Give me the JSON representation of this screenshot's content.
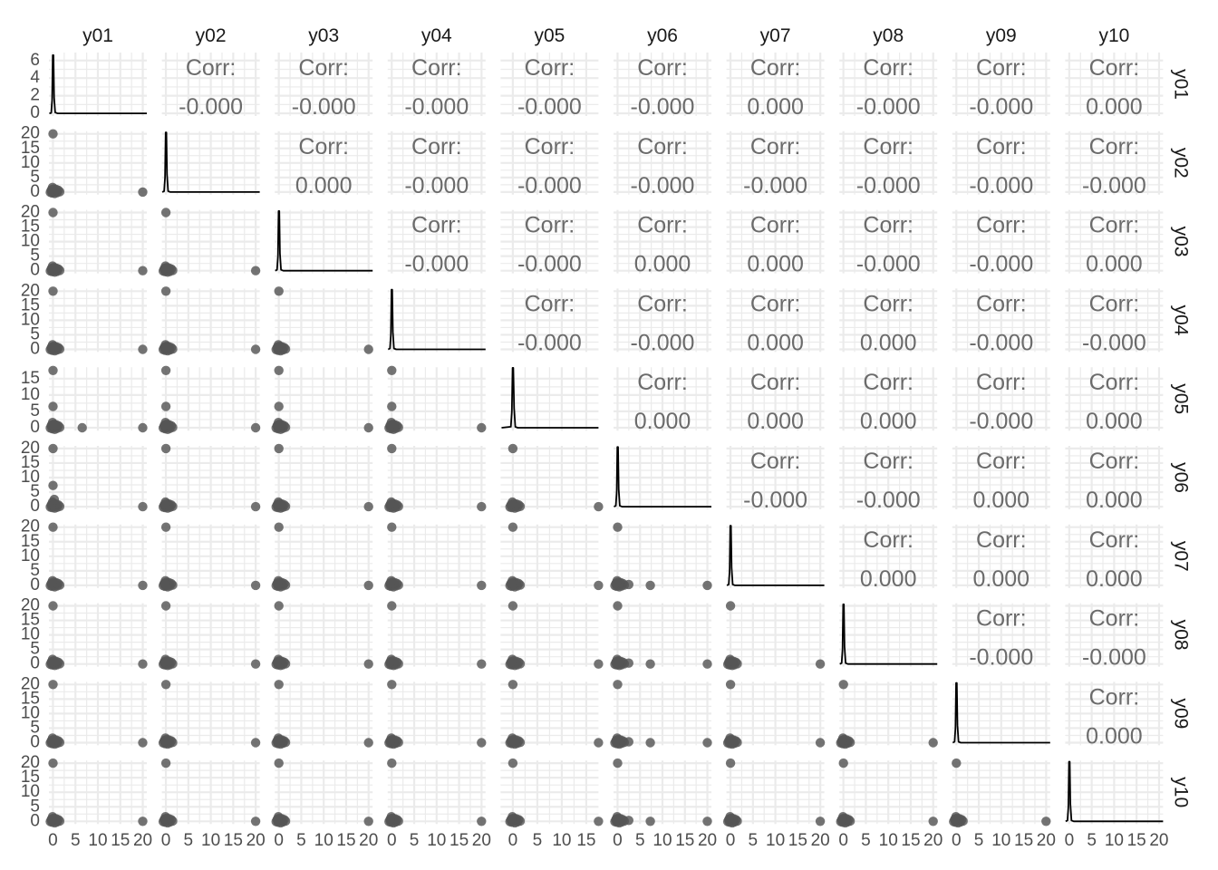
{
  "chart_data": {
    "type": "scatter",
    "subtype": "pairs-matrix",
    "variables": [
      "y01",
      "y02",
      "y03",
      "y04",
      "y05",
      "y06",
      "y07",
      "y08",
      "y09",
      "y10"
    ],
    "corr_label": "Corr:",
    "correlations": [
      [
        null,
        "-0.000",
        "-0.000",
        "-0.000",
        "-0.000",
        "-0.000",
        "0.000",
        "-0.000",
        "-0.000",
        "0.000"
      ],
      [
        null,
        null,
        "0.000",
        "-0.000",
        "-0.000",
        "-0.000",
        "-0.000",
        "-0.000",
        "-0.000",
        "-0.000"
      ],
      [
        null,
        null,
        null,
        "-0.000",
        "-0.000",
        "0.000",
        "0.000",
        "-0.000",
        "-0.000",
        "0.000"
      ],
      [
        null,
        null,
        null,
        null,
        "-0.000",
        "-0.000",
        "0.000",
        "0.000",
        "-0.000",
        "-0.000"
      ],
      [
        null,
        null,
        null,
        null,
        null,
        "0.000",
        "0.000",
        "0.000",
        "-0.000",
        "0.000"
      ],
      [
        null,
        null,
        null,
        null,
        null,
        null,
        "-0.000",
        "-0.000",
        "0.000",
        "0.000"
      ],
      [
        null,
        null,
        null,
        null,
        null,
        null,
        null,
        "0.000",
        "0.000",
        "0.000"
      ],
      [
        null,
        null,
        null,
        null,
        null,
        null,
        null,
        null,
        "-0.000",
        "-0.000"
      ],
      [
        null,
        null,
        null,
        null,
        null,
        null,
        null,
        null,
        null,
        "0.000"
      ],
      [
        null,
        null,
        null,
        null,
        null,
        null,
        null,
        null,
        null,
        null
      ]
    ],
    "x_ticks": [
      [
        "0",
        "5",
        "10",
        "15",
        "20"
      ],
      [
        "0",
        "5",
        "10",
        "15",
        "20"
      ],
      [
        "0",
        "5",
        "10",
        "15",
        "20"
      ],
      [
        "0",
        "5",
        "10",
        "15",
        "20"
      ],
      [
        "0",
        "5",
        "10",
        "15"
      ],
      [
        "0",
        "5",
        "10",
        "15",
        "20"
      ],
      [
        "0",
        "5",
        "10",
        "15",
        "20"
      ],
      [
        "0",
        "5",
        "10",
        "15",
        "20"
      ],
      [
        "0",
        "5",
        "10",
        "15",
        "20"
      ],
      [
        "0",
        "5",
        "10",
        "15",
        "20"
      ]
    ],
    "x_ranges": [
      [
        -0.9,
        20.9
      ],
      [
        -0.9,
        20.9
      ],
      [
        -0.9,
        20.9
      ],
      [
        -0.9,
        20.9
      ],
      [
        -2.5,
        17.5
      ],
      [
        -0.9,
        20.9
      ],
      [
        -0.9,
        20.9
      ],
      [
        -0.9,
        20.9
      ],
      [
        -0.9,
        20.9
      ],
      [
        -0.9,
        20.9
      ]
    ],
    "y_ticks": [
      [
        "0",
        "2",
        "4",
        "6"
      ],
      [
        "0",
        "5",
        "10",
        "15",
        "20"
      ],
      [
        "0",
        "5",
        "10",
        "15",
        "20"
      ],
      [
        "0",
        "5",
        "10",
        "15",
        "20"
      ],
      [
        "0",
        "5",
        "10",
        "15"
      ],
      [
        "0",
        "5",
        "10",
        "15",
        "20"
      ],
      [
        "0",
        "5",
        "10",
        "15",
        "20"
      ],
      [
        "0",
        "5",
        "10",
        "15",
        "20"
      ],
      [
        "0",
        "5",
        "10",
        "15",
        "20"
      ],
      [
        "0",
        "5",
        "10",
        "15",
        "20"
      ]
    ],
    "y_ranges": [
      [
        -0.3,
        6.9
      ],
      [
        -0.9,
        20.9
      ],
      [
        -0.9,
        20.9
      ],
      [
        -0.9,
        20.9
      ],
      [
        -0.9,
        18.5
      ],
      [
        -0.9,
        20.9
      ],
      [
        -0.9,
        20.9
      ],
      [
        -0.9,
        20.9
      ],
      [
        -0.9,
        20.9
      ],
      [
        -0.9,
        20.9
      ]
    ],
    "outlier_positions": [
      20,
      20,
      20,
      20,
      17.5,
      20,
      20,
      20,
      20,
      20
    ],
    "cluster_points": [
      [
        0,
        0
      ],
      [
        0.3,
        0.4
      ],
      [
        -0.2,
        -0.3
      ],
      [
        0.6,
        0.2
      ],
      [
        -0.4,
        0.5
      ],
      [
        0.9,
        -0.2
      ],
      [
        0.2,
        1.1
      ],
      [
        -0.6,
        -0.1
      ],
      [
        1.2,
        0.6
      ],
      [
        0.4,
        -0.5
      ],
      [
        -0.1,
        1.6
      ],
      [
        1.5,
        0.1
      ],
      [
        0.7,
        0.9
      ],
      [
        -0.3,
        0.8
      ]
    ],
    "extra_points": {
      "4": [
        [
          0,
          6.5
        ]
      ],
      "5": [
        [
          7.3,
          0
        ],
        [
          2.5,
          0.3
        ]
      ]
    },
    "density_curves": [
      [
        [
          -0.8,
          0
        ],
        [
          -0.4,
          0.05
        ],
        [
          -0.2,
          1.5
        ],
        [
          -0.05,
          6.6
        ],
        [
          0.1,
          6.6
        ],
        [
          0.25,
          1.8
        ],
        [
          0.5,
          0.1
        ],
        [
          1,
          0
        ],
        [
          20.9,
          0
        ]
      ],
      [
        [
          -0.8,
          0
        ],
        [
          -0.4,
          0.3
        ],
        [
          -0.2,
          5
        ],
        [
          -0.05,
          20.5
        ],
        [
          0.1,
          20.5
        ],
        [
          0.25,
          6
        ],
        [
          0.5,
          0.3
        ],
        [
          1,
          0
        ],
        [
          20.9,
          0
        ]
      ],
      [
        [
          -0.8,
          0
        ],
        [
          -0.4,
          0.3
        ],
        [
          -0.2,
          5
        ],
        [
          -0.05,
          20.5
        ],
        [
          0.1,
          20.5
        ],
        [
          0.25,
          6
        ],
        [
          0.5,
          0.3
        ],
        [
          1,
          0
        ],
        [
          20.9,
          0
        ]
      ],
      [
        [
          -0.8,
          0
        ],
        [
          -0.4,
          0.3
        ],
        [
          -0.2,
          5
        ],
        [
          -0.05,
          20.5
        ],
        [
          0.1,
          20.5
        ],
        [
          0.25,
          6
        ],
        [
          0.5,
          0.3
        ],
        [
          1,
          0
        ],
        [
          20.9,
          0
        ]
      ],
      [
        [
          -2.3,
          0
        ],
        [
          -0.4,
          0.3
        ],
        [
          -0.2,
          5
        ],
        [
          -0.05,
          18.3
        ],
        [
          0.1,
          18.3
        ],
        [
          0.25,
          6
        ],
        [
          0.5,
          0.3
        ],
        [
          1,
          0
        ],
        [
          17.5,
          0
        ]
      ],
      [
        [
          -0.8,
          0
        ],
        [
          -0.4,
          0.3
        ],
        [
          -0.2,
          5
        ],
        [
          -0.05,
          20.5
        ],
        [
          0.1,
          20.5
        ],
        [
          0.25,
          6
        ],
        [
          0.5,
          0.3
        ],
        [
          1,
          0
        ],
        [
          20.9,
          0
        ]
      ],
      [
        [
          -0.8,
          0
        ],
        [
          -0.4,
          0.3
        ],
        [
          -0.2,
          5
        ],
        [
          -0.05,
          20.5
        ],
        [
          0.1,
          20.5
        ],
        [
          0.25,
          6
        ],
        [
          0.5,
          0.3
        ],
        [
          1,
          0
        ],
        [
          20.9,
          0
        ]
      ],
      [
        [
          -0.8,
          0
        ],
        [
          -0.4,
          0.3
        ],
        [
          -0.2,
          5
        ],
        [
          -0.05,
          20.5
        ],
        [
          0.1,
          20.5
        ],
        [
          0.25,
          6
        ],
        [
          0.5,
          0.3
        ],
        [
          1,
          0
        ],
        [
          20.9,
          0
        ]
      ],
      [
        [
          -0.8,
          0
        ],
        [
          -0.4,
          0.3
        ],
        [
          -0.2,
          5
        ],
        [
          -0.05,
          20.5
        ],
        [
          0.1,
          20.5
        ],
        [
          0.25,
          6
        ],
        [
          0.5,
          0.3
        ],
        [
          1,
          0
        ],
        [
          20.9,
          0
        ]
      ],
      [
        [
          -0.8,
          0
        ],
        [
          -0.4,
          0.3
        ],
        [
          -0.2,
          5
        ],
        [
          -0.05,
          20.5
        ],
        [
          0.1,
          20.5
        ],
        [
          0.25,
          6
        ],
        [
          0.5,
          0.3
        ],
        [
          1,
          0
        ],
        [
          20.9,
          0
        ]
      ]
    ],
    "grid": true,
    "legend": "none",
    "colors": {
      "panel_grid": "#ebebeb",
      "point": "#555555",
      "density_line": "#000000",
      "corr_text": "#6b6b6b",
      "tick_text": "#4d4d4d",
      "strip_text": "#1a1a1a"
    }
  }
}
